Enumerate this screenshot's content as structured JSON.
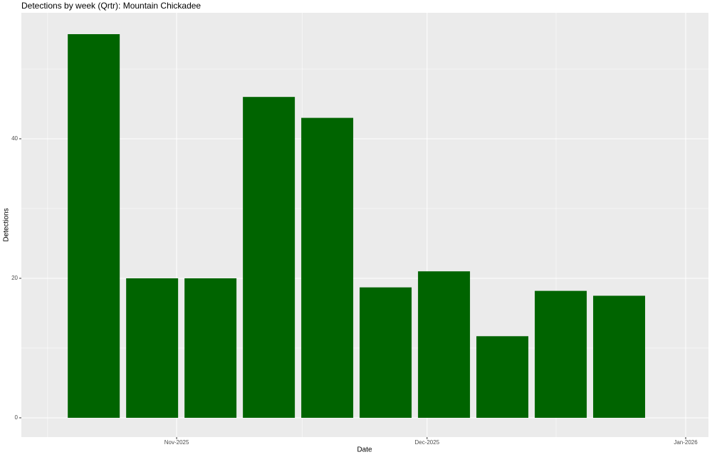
{
  "chart_data": {
    "type": "bar",
    "title": "Detections by week (Qrtr): Mountain Chickadee",
    "x_label": "Date",
    "y_label": "Detections",
    "categories": [
      null,
      null,
      null,
      null,
      null,
      null,
      null,
      null,
      null,
      null
    ],
    "values": [
      55,
      20,
      20,
      46,
      43,
      18.7,
      21,
      11.7,
      18.2,
      17.5
    ],
    "color": "#006400",
    "xlim": [
      -1.24,
      10.53
    ],
    "xticks": [
      {
        "value": 1.42,
        "label": "Nov-2025"
      },
      {
        "value": 5.71,
        "label": "Dec-2025"
      },
      {
        "value": 10.14,
        "label": "Jan-2026"
      }
    ],
    "minor_xticks": [
      -0.79,
      3.57,
      7.92
    ],
    "ylim": [
      -2.76,
      58.06
    ],
    "yticks": [
      0,
      20,
      40
    ],
    "minor_yticks": [
      10,
      30,
      50
    ],
    "grid": true
  }
}
